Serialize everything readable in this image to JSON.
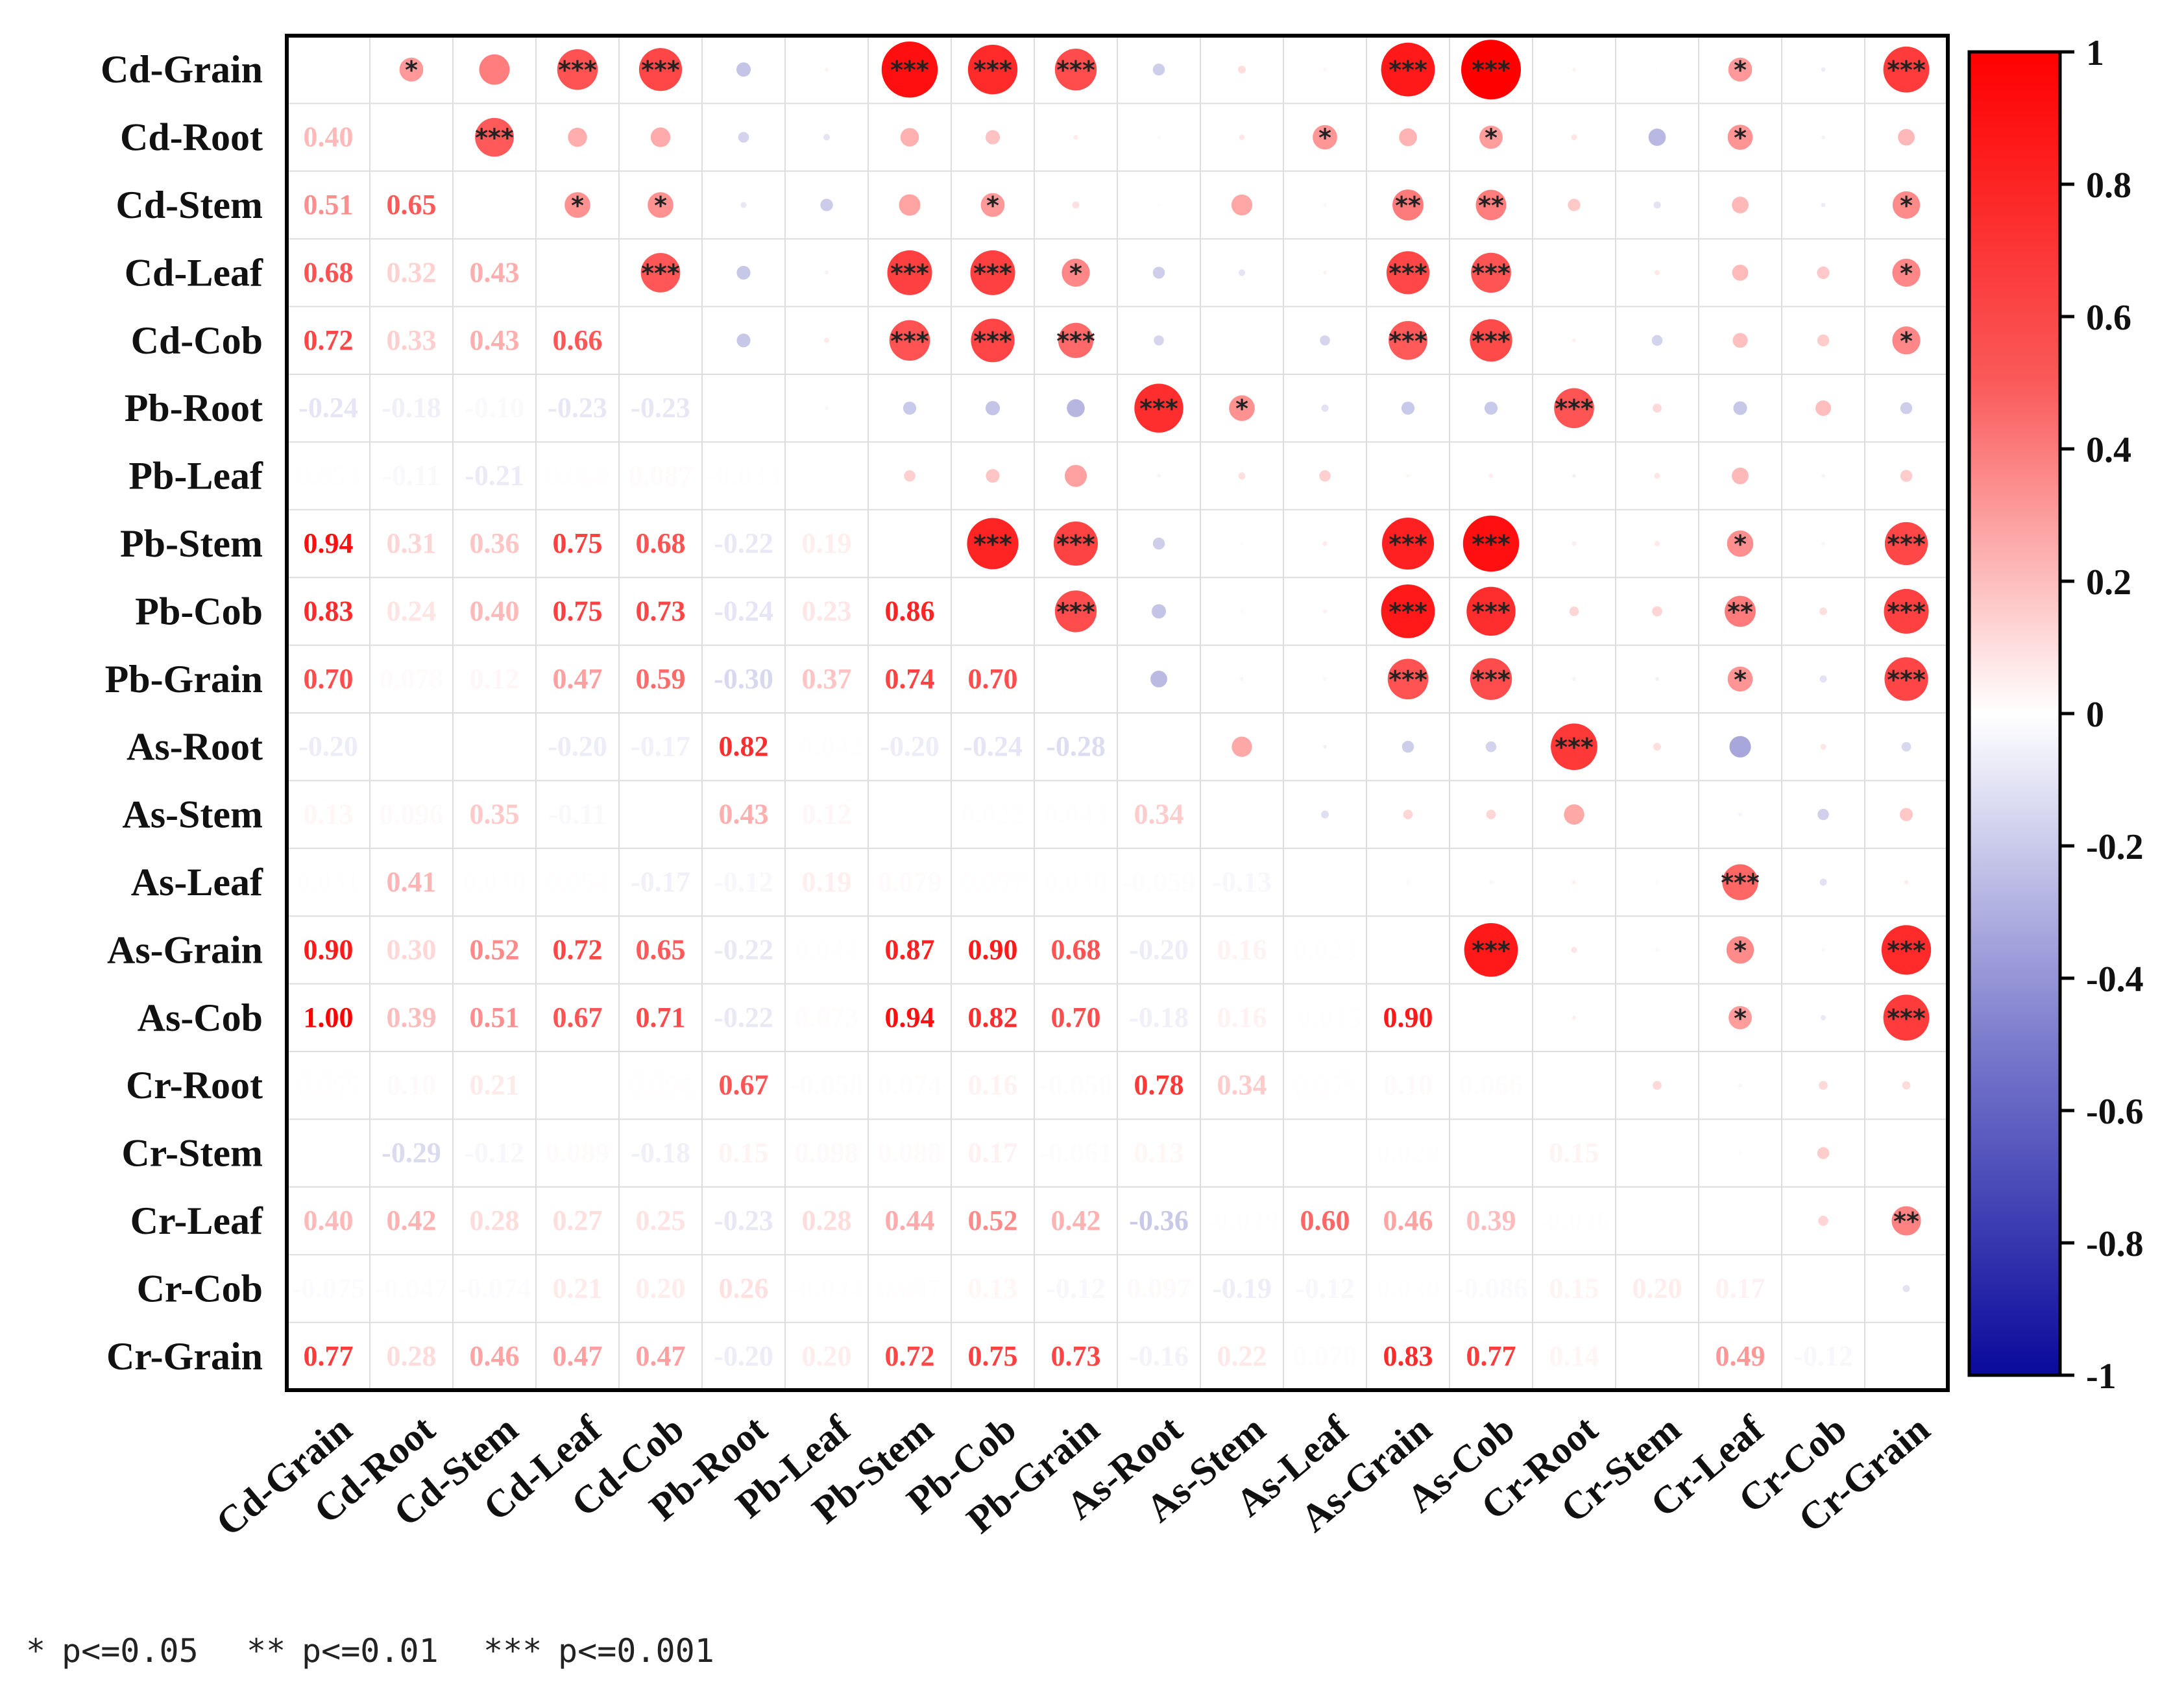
{
  "chart_data": {
    "type": "heatmap",
    "title": "",
    "subtitle": "",
    "variables": [
      "Cd-Grain",
      "Cd-Root",
      "Cd-Stem",
      "Cd-Leaf",
      "Cd-Cob",
      "Pb-Root",
      "Pb-Leaf",
      "Pb-Stem",
      "Pb-Cob",
      "Pb-Grain",
      "As-Root",
      "As-Stem",
      "As-Leaf",
      "As-Grain",
      "As-Cob",
      "Cr-Root",
      "Cr-Stem",
      "Cr-Leaf",
      "Cr-Cob",
      "Cr-Grain"
    ],
    "value_range": [
      -1,
      1
    ],
    "colorbar": {
      "ticks": [
        1,
        0.8,
        0.6,
        0.4,
        0.2,
        0,
        -0.2,
        -0.4,
        -0.6,
        -0.8,
        -1
      ],
      "tick_labels": [
        "1",
        "0.8",
        "0.6",
        "0.4",
        "0.2",
        "0",
        "-0.2",
        "-0.4",
        "-0.6",
        "-0.8",
        "-1"
      ],
      "colors": {
        "positive": "#ff0000",
        "zero": "#ffffff",
        "negative": "#0a0a9c"
      },
      "placement": "right"
    },
    "lower_triangle": "correlation coefficients printed as numbers",
    "upper_triangle": "circles sized and colored by correlation, with significance stars",
    "values_text": [
      [],
      [
        "0.40"
      ],
      [
        "0.51",
        "0.65"
      ],
      [
        "0.68",
        "0.32",
        "0.43"
      ],
      [
        "0.72",
        "0.33",
        "0.43",
        "0.66"
      ],
      [
        "-0.24",
        "-0.18",
        "-0.10",
        "-0.23",
        "-0.23"
      ],
      [
        "0.053",
        "-0.11",
        "-0.21",
        "0.060",
        "0.087",
        "-0.033"
      ],
      [
        "0.94",
        "0.31",
        "0.36",
        "0.75",
        "0.68",
        "-0.22",
        "0.19"
      ],
      [
        "0.83",
        "0.24",
        "0.40",
        "0.75",
        "0.73",
        "-0.24",
        "0.23",
        "0.86"
      ],
      [
        "0.70",
        "0.078",
        "0.12",
        "0.47",
        "0.59",
        "-0.30",
        "0.37",
        "0.74",
        "0.70"
      ],
      [
        "-0.20",
        "-0.015",
        "0.011",
        "-0.20",
        "-0.17",
        "0.82",
        "-0.042",
        "-0.20",
        "-0.24",
        "-0.28"
      ],
      [
        "0.13",
        "0.096",
        "0.35",
        "-0.11",
        "0.000",
        "0.43",
        "0.12",
        "0.010",
        "0.022",
        "0.043",
        "0.34"
      ],
      [
        "0.031",
        "0.41",
        "0.030",
        "0.054",
        "-0.17",
        "-0.12",
        "0.19",
        "0.079",
        "0.057",
        "0.030",
        "-0.059",
        "-0.13"
      ],
      [
        "0.90",
        "0.30",
        "0.52",
        "0.72",
        "0.65",
        "-0.22",
        "0.044",
        "0.87",
        "0.90",
        "0.68",
        "-0.20",
        "0.16",
        "0.023"
      ],
      [
        "1.00",
        "0.39",
        "0.51",
        "0.67",
        "0.71",
        "-0.22",
        "0.073",
        "0.94",
        "0.82",
        "0.70",
        "-0.18",
        "0.16",
        "-0.035",
        "0.90"
      ],
      [
        "0.055",
        "0.10",
        "0.21",
        "0.000",
        "0.054",
        "0.67",
        "-0.058",
        "0.074",
        "0.16",
        "-0.050",
        "0.78",
        "0.34",
        "0.059",
        "0.10",
        "0.066"
      ],
      [
        "0.009",
        "-0.29",
        "-0.12",
        "0.089",
        "-0.18",
        "0.15",
        "0.098",
        "0.088",
        "0.17",
        "-0.061",
        "0.13",
        "0.000",
        "0.015",
        "0.028",
        "0.009",
        "0.15"
      ],
      [
        "0.40",
        "0.42",
        "0.28",
        "0.27",
        "0.25",
        "-0.23",
        "0.28",
        "0.44",
        "0.52",
        "0.42",
        "-0.36",
        "-0.039",
        "0.60",
        "0.46",
        "0.39",
        "-0.036",
        "-0.017"
      ],
      [
        "-0.075",
        "-0.047",
        "-0.074",
        "0.21",
        "0.20",
        "0.26",
        "-0.044",
        "0.047",
        "0.13",
        "-0.12",
        "0.097",
        "-0.19",
        "-0.12",
        "0.030",
        "-0.086",
        "0.15",
        "0.20",
        "0.17"
      ],
      [
        "0.77",
        "0.28",
        "0.46",
        "0.47",
        "0.47",
        "-0.20",
        "0.20",
        "0.72",
        "0.75",
        "0.73",
        "-0.16",
        "0.22",
        "0.070",
        "0.83",
        "0.77",
        "0.14",
        "0.000",
        "0.49",
        "-0.12"
      ]
    ],
    "significance": [
      [],
      [
        "*"
      ],
      [
        "",
        "***"
      ],
      [
        "***",
        "",
        "*"
      ],
      [
        "***",
        "",
        "*",
        "***"
      ],
      [
        "",
        "",
        "",
        "",
        ""
      ],
      [
        "",
        "",
        "",
        "",
        "",
        ""
      ],
      [
        "***",
        "",
        "",
        "***",
        "***",
        "",
        ""
      ],
      [
        "***",
        "",
        "*",
        "***",
        "***",
        "",
        "",
        "***"
      ],
      [
        "***",
        "",
        "",
        "*",
        "***",
        "",
        "",
        "***",
        "***"
      ],
      [
        "",
        "",
        "",
        "",
        "",
        "***",
        "",
        "",
        "",
        ""
      ],
      [
        "",
        "",
        "",
        "",
        "",
        "*",
        "",
        "",
        "",
        "",
        ""
      ],
      [
        "",
        "*",
        "",
        "",
        "",
        "",
        "",
        "",
        "",
        "",
        "",
        ""
      ],
      [
        "***",
        "",
        "**",
        "***",
        "***",
        "",
        "",
        "***",
        "***",
        "***",
        "",
        "",
        ""
      ],
      [
        "***",
        "*",
        "**",
        "***",
        "***",
        "",
        "",
        "***",
        "***",
        "***",
        "",
        "",
        "",
        "***"
      ],
      [
        "",
        "",
        "",
        "",
        "",
        "***",
        "",
        "",
        "",
        "",
        "***",
        "",
        "",
        "",
        ""
      ],
      [
        "",
        "",
        "",
        "",
        "",
        "",
        "",
        "",
        "",
        "",
        "",
        "",
        "",
        "",
        "",
        ""
      ],
      [
        "*",
        "*",
        "",
        "",
        "",
        "",
        "",
        "*",
        "**",
        "*",
        "",
        "",
        "***",
        "*",
        "*",
        "",
        ""
      ],
      [
        "",
        "",
        "",
        "",
        "",
        "",
        "",
        "",
        "",
        "",
        "",
        "",
        "",
        "",
        "",
        "",
        "",
        ""
      ],
      [
        "***",
        "",
        "*",
        "*",
        "*",
        "",
        "",
        "***",
        "***",
        "***",
        "",
        "",
        "",
        "***",
        "***",
        "",
        "",
        "**",
        ""
      ]
    ]
  },
  "footnote": {
    "levels": [
      {
        "stars": "*",
        "text": "p<=0.05"
      },
      {
        "stars": "**",
        "text": "p<=0.01"
      },
      {
        "stars": "***",
        "text": "p<=0.001"
      }
    ]
  }
}
